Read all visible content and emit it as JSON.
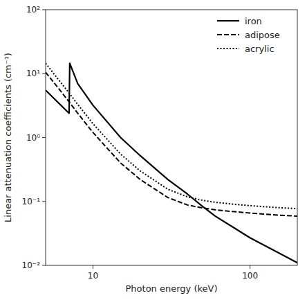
{
  "chart_data": {
    "type": "line",
    "xlabel": "Photon energy (keV)",
    "ylabel": "Linear attenuation coefficients (cm⁻¹)",
    "log": true,
    "xlim": [
      5,
      200
    ],
    "ylim": [
      0.01,
      100
    ],
    "xticks": [
      10,
      100
    ],
    "yticks": [
      {
        "value": 0.01,
        "label": "10⁻²"
      },
      {
        "value": 0.1,
        "label": "10⁻¹"
      },
      {
        "value": 1,
        "label": "10⁰"
      },
      {
        "value": 10,
        "label": "10¹"
      },
      {
        "value": 100,
        "label": "10²"
      }
    ],
    "grid": false,
    "legend": "upper right",
    "series": [
      {
        "name": "iron",
        "color": "#000000",
        "line_style": "solid",
        "x": [
          5.0,
          7.05,
          7.12,
          8.0,
          10.0,
          15.0,
          20.0,
          30.0,
          40.0,
          50.0,
          60.0,
          80.0,
          100.0,
          150.0,
          200.0
        ],
        "values": [
          5.5,
          2.4,
          14.5,
          7.0,
          3.2,
          1.0,
          0.52,
          0.22,
          0.13,
          0.083,
          0.059,
          0.038,
          0.027,
          0.016,
          0.011
        ]
      },
      {
        "name": "adipose",
        "color": "#000000",
        "line_style": "dashed",
        "x": [
          5.0,
          6.0,
          7.0,
          8.0,
          10.0,
          15.0,
          20.0,
          30.0,
          40.0,
          50.0,
          60.0,
          80.0,
          100.0,
          150.0,
          200.0
        ],
        "values": [
          10.5,
          6.0,
          3.7,
          2.4,
          1.2,
          0.4,
          0.22,
          0.115,
          0.088,
          0.079,
          0.074,
          0.069,
          0.066,
          0.061,
          0.059
        ]
      },
      {
        "name": "acrylic",
        "color": "#000000",
        "line_style": "dotted",
        "x": [
          5.0,
          6.0,
          7.0,
          8.0,
          10.0,
          15.0,
          20.0,
          30.0,
          40.0,
          50.0,
          60.0,
          80.0,
          100.0,
          150.0,
          200.0
        ],
        "values": [
          14.5,
          8.2,
          5.1,
          3.3,
          1.65,
          0.55,
          0.3,
          0.155,
          0.118,
          0.104,
          0.097,
          0.09,
          0.086,
          0.08,
          0.077
        ]
      }
    ]
  }
}
